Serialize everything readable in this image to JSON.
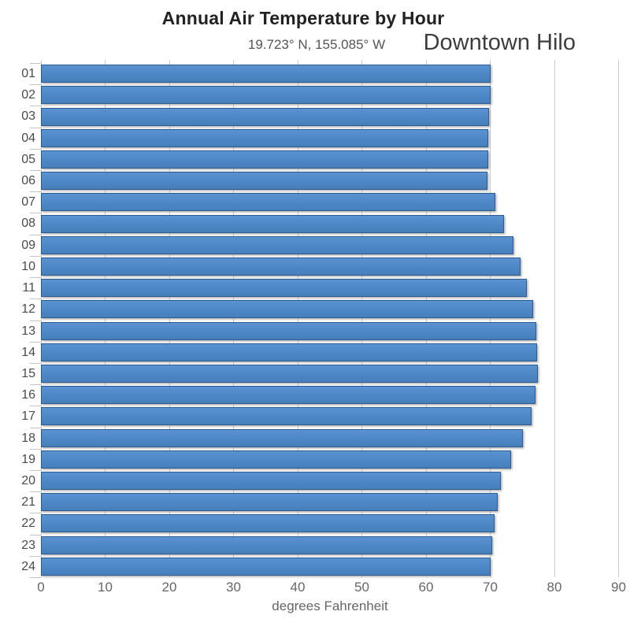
{
  "chart_data": {
    "type": "bar",
    "orientation": "horizontal",
    "title": "Annual Air Temperature by Hour",
    "subtitle": "19.723° N, 155.085° W",
    "annotation": "Downtown Hilo",
    "xlabel": "degrees Fahrenheit",
    "ylabel": "",
    "xlim": [
      0,
      90
    ],
    "x_ticks": [
      0,
      10,
      20,
      30,
      40,
      50,
      60,
      70,
      80,
      90
    ],
    "grid": true,
    "legend": "none",
    "bar_color": "#4d87c6",
    "bar_border_color": "#2e5c92",
    "grid_color": "#cccccc",
    "categories": [
      "01",
      "02",
      "03",
      "04",
      "05",
      "06",
      "07",
      "08",
      "09",
      "10",
      "11",
      "12",
      "13",
      "14",
      "15",
      "16",
      "17",
      "18",
      "19",
      "20",
      "21",
      "22",
      "23",
      "24"
    ],
    "values": [
      70.0,
      70.0,
      69.8,
      69.7,
      69.7,
      69.6,
      70.8,
      72.2,
      73.6,
      74.7,
      75.7,
      76.7,
      77.2,
      77.3,
      77.4,
      77.0,
      76.4,
      75.1,
      73.2,
      71.7,
      71.2,
      70.7,
      70.3,
      70.0
    ]
  }
}
